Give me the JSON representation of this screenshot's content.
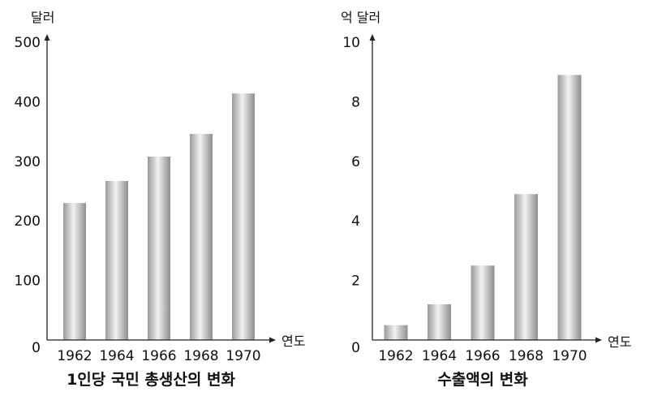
{
  "chart_data": [
    {
      "type": "bar",
      "title": "1인당 국민 총생산의 변화",
      "ylabel": "달러",
      "xlabel": "연도",
      "categories": [
        "1962",
        "1964",
        "1966",
        "1968",
        "1970"
      ],
      "values": [
        230,
        267,
        308,
        346,
        414
      ],
      "ylim": [
        0,
        500
      ],
      "yticks": [
        "0",
        "100",
        "200",
        "300",
        "400",
        "500"
      ],
      "grid": false,
      "bar_color": "#b8b8b8"
    },
    {
      "type": "bar",
      "title": "수출액의 변화",
      "ylabel": "억 달러",
      "xlabel": "연도",
      "categories": [
        "1962",
        "1964",
        "1966",
        "1968",
        "1970"
      ],
      "values": [
        0.5,
        1.2,
        2.5,
        4.9,
        8.9
      ],
      "ylim": [
        0,
        10
      ],
      "yticks": [
        "0",
        "2",
        "4",
        "6",
        "8",
        "10"
      ],
      "grid": false,
      "bar_color": "#b8b8b8"
    }
  ]
}
